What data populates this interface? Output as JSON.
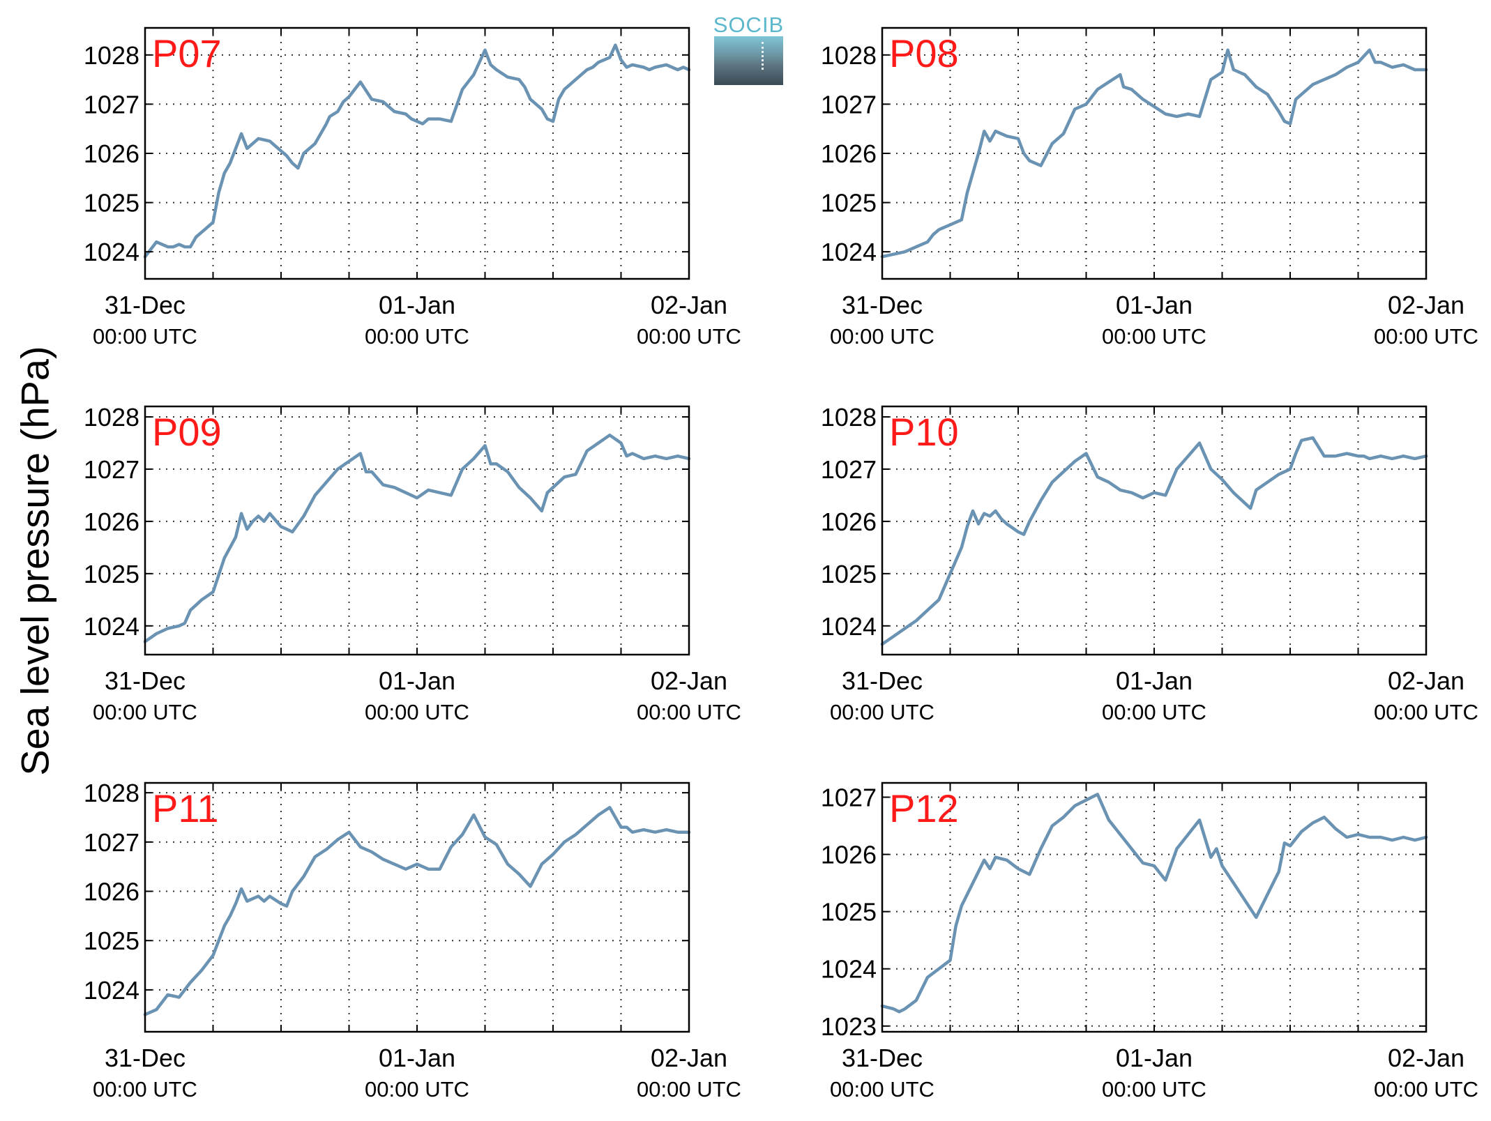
{
  "figure": {
    "ylabel": "Sea level pressure (hPa)",
    "logo_text": "SOCIB",
    "line_color": "#6a92b2",
    "label_color": "#ff1a1a"
  },
  "chart_data": [
    {
      "type": "line",
      "title": "P07",
      "ylim": [
        1023.45,
        1028.55
      ],
      "yticks": [
        1024,
        1025,
        1026,
        1027,
        1028
      ],
      "xticks": [
        {
          "hour": 0,
          "label": "31-Dec",
          "sublabel": "00:00 UTC"
        },
        {
          "hour": 24,
          "label": "01-Jan",
          "sublabel": "00:00 UTC"
        },
        {
          "hour": 48,
          "label": "02-Jan",
          "sublabel": "00:00 UTC"
        }
      ],
      "grid": true,
      "series": [
        {
          "x": [
            0,
            1,
            1.5,
            2,
            2.5,
            3,
            3.5,
            4,
            4.5,
            5,
            5.5,
            6,
            6.5,
            7,
            7.5,
            8,
            8.5,
            9,
            9.5,
            10,
            11,
            12,
            12.5,
            13,
            13.5,
            14,
            15,
            16,
            16.3,
            17,
            17.5,
            18,
            19,
            20,
            21,
            22,
            23,
            23.5,
            24,
            24.5,
            25,
            26,
            27,
            28,
            29,
            30,
            30.5,
            31,
            32,
            33,
            33.5,
            34,
            35,
            35.5,
            36,
            36.5,
            37,
            37.5,
            38,
            38.5,
            39,
            39.5,
            40,
            41,
            41.5,
            42,
            42.5,
            43,
            44,
            44.5,
            45,
            46,
            47,
            47.5,
            48
          ],
          "y": [
            1023.9,
            1024.2,
            1024.15,
            1024.1,
            1024.1,
            1024.15,
            1024.1,
            1024.1,
            1024.3,
            1024.4,
            1024.5,
            1024.6,
            1025.2,
            1025.6,
            1025.8,
            1026.1,
            1026.4,
            1026.1,
            1026.2,
            1026.3,
            1026.25,
            1026.05,
            1025.95,
            1025.8,
            1025.7,
            1026.0,
            1026.2,
            1026.6,
            1026.75,
            1026.85,
            1027.05,
            1027.15,
            1027.45,
            1027.1,
            1027.05,
            1026.85,
            1026.8,
            1026.7,
            1026.65,
            1026.6,
            1026.7,
            1026.7,
            1026.65,
            1027.3,
            1027.6,
            1028.1,
            1027.8,
            1027.7,
            1027.55,
            1027.5,
            1027.35,
            1027.1,
            1026.9,
            1026.7,
            1026.65,
            1027.1,
            1027.3,
            1027.4,
            1027.5,
            1027.6,
            1027.7,
            1027.75,
            1027.85,
            1027.95,
            1028.2,
            1027.9,
            1027.75,
            1027.8,
            1027.75,
            1027.7,
            1027.75,
            1027.8,
            1027.7,
            1027.75,
            1027.7
          ]
        }
      ]
    },
    {
      "type": "line",
      "title": "P08",
      "ylim": [
        1023.45,
        1028.55
      ],
      "yticks": [
        1024,
        1025,
        1026,
        1027,
        1028
      ],
      "xticks": [
        {
          "hour": 0,
          "label": "31-Dec",
          "sublabel": "00:00 UTC"
        },
        {
          "hour": 24,
          "label": "01-Jan",
          "sublabel": "00:00 UTC"
        },
        {
          "hour": 48,
          "label": "02-Jan",
          "sublabel": "00:00 UTC"
        }
      ],
      "grid": true,
      "series": [
        {
          "x": [
            0,
            1,
            2,
            3,
            4,
            4.5,
            5,
            6,
            7,
            7.5,
            8,
            8.5,
            9,
            9.5,
            10,
            11,
            12,
            12.5,
            13,
            14,
            15,
            16,
            17,
            18,
            19,
            20,
            21,
            21.3,
            22,
            23,
            24,
            25,
            26,
            27,
            28,
            29,
            30,
            30.5,
            31,
            32,
            33,
            34,
            35,
            35.5,
            36,
            36.5,
            37,
            38,
            39,
            40,
            41,
            42,
            43,
            43.5,
            44,
            44.5,
            45,
            46,
            47,
            48
          ],
          "y": [
            1023.9,
            1023.95,
            1024.0,
            1024.1,
            1024.2,
            1024.35,
            1024.45,
            1024.55,
            1024.65,
            1025.2,
            1025.6,
            1026.0,
            1026.45,
            1026.25,
            1026.45,
            1026.35,
            1026.3,
            1026.0,
            1025.85,
            1025.75,
            1026.2,
            1026.4,
            1026.9,
            1027.0,
            1027.3,
            1027.45,
            1027.6,
            1027.35,
            1027.3,
            1027.1,
            1026.95,
            1026.8,
            1026.75,
            1026.8,
            1026.75,
            1027.5,
            1027.65,
            1028.1,
            1027.7,
            1027.6,
            1027.35,
            1027.2,
            1026.85,
            1026.65,
            1026.6,
            1027.1,
            1027.2,
            1027.4,
            1027.5,
            1027.6,
            1027.75,
            1027.85,
            1028.1,
            1027.85,
            1027.85,
            1027.8,
            1027.75,
            1027.8,
            1027.7,
            1027.7
          ]
        }
      ]
    },
    {
      "type": "line",
      "title": "P09",
      "ylim": [
        1023.45,
        1028.2
      ],
      "yticks": [
        1024,
        1025,
        1026,
        1027,
        1028
      ],
      "xticks": [
        {
          "hour": 0,
          "label": "31-Dec",
          "sublabel": "00:00 UTC"
        },
        {
          "hour": 24,
          "label": "01-Jan",
          "sublabel": "00:00 UTC"
        },
        {
          "hour": 48,
          "label": "02-Jan",
          "sublabel": "00:00 UTC"
        }
      ],
      "grid": true,
      "series": [
        {
          "x": [
            0,
            1,
            2,
            3,
            3.5,
            4,
            5,
            6,
            7,
            8,
            8.5,
            9,
            9.5,
            10,
            10.5,
            11,
            12,
            12.5,
            13,
            14,
            15,
            16,
            17,
            18,
            19,
            19.5,
            20,
            21,
            22,
            23,
            24,
            25,
            26,
            27,
            28,
            29,
            30,
            30.5,
            31,
            32,
            33,
            34,
            35,
            35.5,
            36,
            37,
            38,
            39,
            40,
            41,
            42,
            42.5,
            43,
            43.5,
            44,
            45,
            46,
            47,
            48
          ],
          "y": [
            1023.7,
            1023.85,
            1023.95,
            1024.0,
            1024.05,
            1024.3,
            1024.5,
            1024.65,
            1025.3,
            1025.7,
            1026.15,
            1025.85,
            1026.0,
            1026.1,
            1026.0,
            1026.15,
            1025.9,
            1025.85,
            1025.8,
            1026.1,
            1026.5,
            1026.75,
            1027.0,
            1027.15,
            1027.3,
            1026.95,
            1026.95,
            1026.7,
            1026.65,
            1026.55,
            1026.45,
            1026.6,
            1026.55,
            1026.5,
            1027.0,
            1027.2,
            1027.45,
            1027.1,
            1027.1,
            1026.95,
            1026.65,
            1026.45,
            1026.2,
            1026.55,
            1026.65,
            1026.85,
            1026.9,
            1027.35,
            1027.5,
            1027.65,
            1027.5,
            1027.25,
            1027.3,
            1027.25,
            1027.2,
            1027.25,
            1027.2,
            1027.25,
            1027.2
          ]
        }
      ]
    },
    {
      "type": "line",
      "title": "P10",
      "ylim": [
        1023.45,
        1028.2
      ],
      "yticks": [
        1024,
        1025,
        1026,
        1027,
        1028
      ],
      "xticks": [
        {
          "hour": 0,
          "label": "31-Dec",
          "sublabel": "00:00 UTC"
        },
        {
          "hour": 24,
          "label": "01-Jan",
          "sublabel": "00:00 UTC"
        },
        {
          "hour": 48,
          "label": "02-Jan",
          "sublabel": "00:00 UTC"
        }
      ],
      "grid": true,
      "series": [
        {
          "x": [
            0,
            1,
            2,
            3,
            4,
            5,
            6,
            7,
            7.5,
            8,
            8.5,
            9,
            9.5,
            10,
            10.5,
            11,
            12,
            12.5,
            13,
            14,
            15,
            16,
            17,
            18,
            19,
            20,
            21,
            22,
            23,
            24,
            25,
            26,
            27,
            28,
            29,
            30,
            31,
            32,
            32.5,
            33,
            34,
            35,
            36,
            36.5,
            37,
            38,
            39,
            40,
            41,
            42,
            42.5,
            43,
            44,
            45,
            46,
            47,
            48
          ],
          "y": [
            1023.65,
            1023.8,
            1023.95,
            1024.1,
            1024.3,
            1024.5,
            1025.0,
            1025.5,
            1025.9,
            1026.2,
            1025.95,
            1026.15,
            1026.1,
            1026.2,
            1026.05,
            1025.95,
            1025.8,
            1025.75,
            1026.0,
            1026.4,
            1026.75,
            1026.95,
            1027.15,
            1027.3,
            1026.85,
            1026.75,
            1026.6,
            1026.55,
            1026.45,
            1026.55,
            1026.5,
            1027.0,
            1027.25,
            1027.5,
            1027.0,
            1026.8,
            1026.55,
            1026.35,
            1026.25,
            1026.6,
            1026.75,
            1026.9,
            1027.0,
            1027.3,
            1027.55,
            1027.6,
            1027.25,
            1027.25,
            1027.3,
            1027.25,
            1027.25,
            1027.2,
            1027.25,
            1027.2,
            1027.25,
            1027.2,
            1027.25
          ]
        }
      ]
    },
    {
      "type": "line",
      "title": "P11",
      "ylim": [
        1023.15,
        1028.2
      ],
      "yticks": [
        1024,
        1025,
        1026,
        1027,
        1028
      ],
      "xticks": [
        {
          "hour": 0,
          "label": "31-Dec",
          "sublabel": "00:00 UTC"
        },
        {
          "hour": 24,
          "label": "01-Jan",
          "sublabel": "00:00 UTC"
        },
        {
          "hour": 48,
          "label": "02-Jan",
          "sublabel": "00:00 UTC"
        }
      ],
      "grid": true,
      "series": [
        {
          "x": [
            0,
            1,
            2,
            3,
            3.5,
            4,
            5,
            6,
            7,
            7.5,
            8,
            8.5,
            9,
            9.5,
            10,
            10.5,
            11,
            12,
            12.5,
            13,
            14,
            15,
            16,
            17,
            18,
            19,
            20,
            21,
            22,
            23,
            24,
            25,
            26,
            27,
            28,
            29,
            30,
            31,
            32,
            33,
            34,
            35,
            36,
            37,
            38,
            39,
            40,
            41,
            42,
            42.5,
            43,
            44,
            45,
            46,
            47,
            48
          ],
          "y": [
            1023.5,
            1023.6,
            1023.9,
            1023.85,
            1024.0,
            1024.15,
            1024.4,
            1024.7,
            1025.3,
            1025.5,
            1025.75,
            1026.05,
            1025.8,
            1025.85,
            1025.9,
            1025.8,
            1025.9,
            1025.75,
            1025.7,
            1026.0,
            1026.3,
            1026.7,
            1026.85,
            1027.05,
            1027.2,
            1026.9,
            1026.8,
            1026.65,
            1026.55,
            1026.45,
            1026.55,
            1026.45,
            1026.45,
            1026.9,
            1027.15,
            1027.55,
            1027.1,
            1026.95,
            1026.55,
            1026.35,
            1026.1,
            1026.55,
            1026.75,
            1027.0,
            1027.15,
            1027.35,
            1027.55,
            1027.7,
            1027.3,
            1027.3,
            1027.2,
            1027.25,
            1027.2,
            1027.25,
            1027.2,
            1027.2
          ]
        }
      ]
    },
    {
      "type": "line",
      "title": "P12",
      "ylim": [
        1022.9,
        1027.25
      ],
      "yticks": [
        1023,
        1024,
        1025,
        1026,
        1027
      ],
      "xticks": [
        {
          "hour": 0,
          "label": "31-Dec",
          "sublabel": "00:00 UTC"
        },
        {
          "hour": 24,
          "label": "01-Jan",
          "sublabel": "00:00 UTC"
        },
        {
          "hour": 48,
          "label": "02-Jan",
          "sublabel": "00:00 UTC"
        }
      ],
      "grid": true,
      "series": [
        {
          "x": [
            0,
            1,
            1.5,
            2,
            3,
            4,
            5,
            6,
            6.5,
            7,
            8,
            9,
            9.5,
            10,
            11,
            12,
            13,
            14,
            15,
            16,
            17,
            18,
            19,
            20,
            21,
            22,
            23,
            24,
            25,
            26,
            27,
            28,
            29,
            29.5,
            30,
            31,
            32,
            33,
            34,
            35,
            35.5,
            36,
            37,
            38,
            39,
            40,
            41,
            42,
            43,
            44,
            45,
            46,
            47,
            48
          ],
          "y": [
            1023.35,
            1023.3,
            1023.25,
            1023.3,
            1023.45,
            1023.85,
            1024.0,
            1024.15,
            1024.75,
            1025.1,
            1025.5,
            1025.9,
            1025.75,
            1025.95,
            1025.9,
            1025.75,
            1025.65,
            1026.1,
            1026.5,
            1026.65,
            1026.85,
            1026.95,
            1027.05,
            1026.6,
            1026.35,
            1026.1,
            1025.85,
            1025.8,
            1025.55,
            1026.1,
            1026.35,
            1026.6,
            1025.95,
            1026.1,
            1025.8,
            1025.5,
            1025.2,
            1024.9,
            1025.3,
            1025.7,
            1026.2,
            1026.15,
            1026.4,
            1026.55,
            1026.65,
            1026.45,
            1026.3,
            1026.35,
            1026.3,
            1026.3,
            1026.25,
            1026.3,
            1026.25,
            1026.3
          ]
        }
      ]
    }
  ]
}
